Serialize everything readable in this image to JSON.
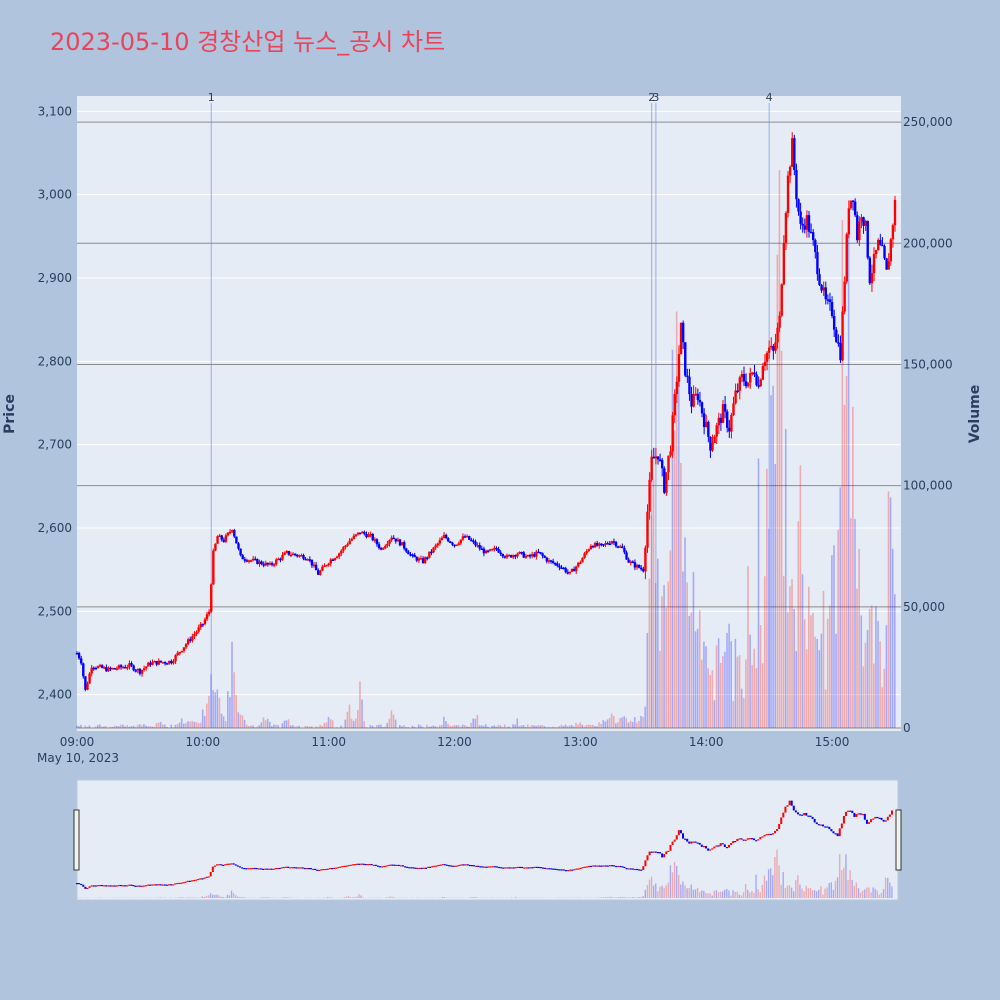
{
  "chart_data": {
    "type": "candlestick",
    "title": "2023-05-10 경창산업 뉴스_공시 차트",
    "ylabel": "Price",
    "y2label": "Volume",
    "x_date_label": "May 10, 2023",
    "xlim": [
      "09:00",
      "15:30"
    ],
    "ylim": [
      2360,
      3110
    ],
    "y2lim": [
      0,
      262000
    ],
    "x_ticks": [
      "09:00",
      "10:00",
      "11:00",
      "12:00",
      "13:00",
      "14:00",
      "15:00"
    ],
    "y_ticks": [
      "2,400",
      "2,500",
      "2,600",
      "2,700",
      "2,800",
      "2,900",
      "3,000",
      "3,100"
    ],
    "y_tick_values": [
      2400,
      2500,
      2600,
      2700,
      2800,
      2900,
      3000,
      3100
    ],
    "y2_ticks": [
      "0",
      "50,000",
      "100,000",
      "150,000",
      "200,000",
      "250,000"
    ],
    "y2_tick_values": [
      0,
      50000,
      100000,
      150000,
      200000,
      250000
    ],
    "up_color": "#ff0000",
    "down_color": "#0000ff",
    "news_markers": [
      {
        "label": "1",
        "time": "10:04"
      },
      {
        "label": "2",
        "time": "13:34"
      },
      {
        "label": "3",
        "time": "13:36"
      },
      {
        "label": "4",
        "time": "14:30"
      }
    ],
    "price_path": [
      [
        "09:00",
        2450
      ],
      [
        "09:02",
        2440
      ],
      [
        "09:04",
        2405
      ],
      [
        "09:07",
        2435
      ],
      [
        "09:15",
        2430
      ],
      [
        "09:25",
        2435
      ],
      [
        "09:30",
        2428
      ],
      [
        "09:35",
        2438
      ],
      [
        "09:45",
        2440
      ],
      [
        "09:55",
        2470
      ],
      [
        "10:00",
        2485
      ],
      [
        "10:03",
        2500
      ],
      [
        "10:05",
        2570
      ],
      [
        "10:07",
        2590
      ],
      [
        "10:10",
        2585
      ],
      [
        "10:14",
        2600
      ],
      [
        "10:18",
        2565
      ],
      [
        "10:25",
        2560
      ],
      [
        "10:32",
        2555
      ],
      [
        "10:40",
        2570
      ],
      [
        "10:50",
        2565
      ],
      [
        "10:55",
        2545
      ],
      [
        "11:00",
        2560
      ],
      [
        "11:05",
        2570
      ],
      [
        "11:10",
        2585
      ],
      [
        "11:15",
        2595
      ],
      [
        "11:20",
        2590
      ],
      [
        "11:25",
        2575
      ],
      [
        "11:30",
        2590
      ],
      [
        "11:35",
        2580
      ],
      [
        "11:40",
        2565
      ],
      [
        "11:45",
        2560
      ],
      [
        "11:50",
        2575
      ],
      [
        "11:55",
        2590
      ],
      [
        "12:00",
        2580
      ],
      [
        "12:05",
        2590
      ],
      [
        "12:10",
        2580
      ],
      [
        "12:15",
        2570
      ],
      [
        "12:20",
        2575
      ],
      [
        "12:25",
        2565
      ],
      [
        "12:30",
        2570
      ],
      [
        "12:35",
        2565
      ],
      [
        "12:40",
        2570
      ],
      [
        "12:45",
        2560
      ],
      [
        "12:50",
        2555
      ],
      [
        "12:55",
        2545
      ],
      [
        "13:00",
        2560
      ],
      [
        "13:05",
        2580
      ],
      [
        "13:10",
        2578
      ],
      [
        "13:15",
        2585
      ],
      [
        "13:20",
        2575
      ],
      [
        "13:23",
        2560
      ],
      [
        "13:26",
        2555
      ],
      [
        "13:30",
        2550
      ],
      [
        "13:32",
        2620
      ],
      [
        "13:34",
        2680
      ],
      [
        "13:37",
        2690
      ],
      [
        "13:40",
        2650
      ],
      [
        "13:43",
        2700
      ],
      [
        "13:46",
        2780
      ],
      [
        "13:48",
        2840
      ],
      [
        "13:50",
        2790
      ],
      [
        "13:53",
        2750
      ],
      [
        "13:56",
        2760
      ],
      [
        "13:59",
        2730
      ],
      [
        "14:02",
        2700
      ],
      [
        "14:05",
        2720
      ],
      [
        "14:08",
        2740
      ],
      [
        "14:11",
        2720
      ],
      [
        "14:14",
        2760
      ],
      [
        "14:17",
        2780
      ],
      [
        "14:20",
        2775
      ],
      [
        "14:23",
        2790
      ],
      [
        "14:25",
        2770
      ],
      [
        "14:27",
        2800
      ],
      [
        "14:30",
        2815
      ],
      [
        "14:32",
        2810
      ],
      [
        "14:35",
        2850
      ],
      [
        "14:37",
        2950
      ],
      [
        "14:39",
        3020
      ],
      [
        "14:41",
        3060
      ],
      [
        "14:43",
        3000
      ],
      [
        "14:45",
        2960
      ],
      [
        "14:48",
        2970
      ],
      [
        "14:51",
        2940
      ],
      [
        "14:54",
        2900
      ],
      [
        "14:57",
        2870
      ],
      [
        "15:00",
        2860
      ],
      [
        "15:02",
        2830
      ],
      [
        "15:04",
        2810
      ],
      [
        "15:06",
        2900
      ],
      [
        "15:08",
        2990
      ],
      [
        "15:10",
        3000
      ],
      [
        "15:12",
        2950
      ],
      [
        "15:14",
        2980
      ],
      [
        "15:16",
        2960
      ],
      [
        "15:18",
        2900
      ],
      [
        "15:20",
        2920
      ],
      [
        "15:22",
        2940
      ],
      [
        "15:24",
        2930
      ],
      [
        "15:26",
        2905
      ],
      [
        "15:28",
        2945
      ],
      [
        "15:30",
        2990
      ]
    ],
    "volume_spikes": [
      [
        "09:00",
        500
      ],
      [
        "09:20",
        800
      ],
      [
        "09:30",
        1000
      ],
      [
        "09:40",
        2000
      ],
      [
        "09:50",
        3000
      ],
      [
        "09:55",
        4000
      ],
      [
        "10:00",
        5000
      ],
      [
        "10:04",
        34000
      ],
      [
        "10:05",
        22000
      ],
      [
        "10:07",
        16000
      ],
      [
        "10:10",
        7000
      ],
      [
        "10:14",
        30000
      ],
      [
        "10:18",
        6000
      ],
      [
        "10:30",
        5000
      ],
      [
        "10:40",
        3000
      ],
      [
        "11:00",
        4000
      ],
      [
        "11:10",
        6000
      ],
      [
        "11:15",
        14000
      ],
      [
        "11:30",
        5000
      ],
      [
        "11:55",
        3000
      ],
      [
        "12:10",
        6000
      ],
      [
        "12:30",
        2000
      ],
      [
        "13:00",
        2000
      ],
      [
        "13:10",
        3000
      ],
      [
        "13:15",
        5000
      ],
      [
        "13:20",
        6000
      ],
      [
        "13:25",
        4000
      ],
      [
        "13:30",
        5000
      ],
      [
        "13:34",
        98000
      ],
      [
        "13:36",
        70000
      ],
      [
        "13:40",
        40000
      ],
      [
        "13:44",
        155000
      ],
      [
        "13:46",
        180000
      ],
      [
        "13:48",
        66000
      ],
      [
        "13:50",
        55000
      ],
      [
        "13:53",
        45000
      ],
      [
        "13:56",
        35000
      ],
      [
        "14:00",
        28000
      ],
      [
        "14:05",
        18000
      ],
      [
        "14:10",
        30000
      ],
      [
        "14:15",
        22000
      ],
      [
        "14:20",
        26000
      ],
      [
        "14:25",
        60000
      ],
      [
        "14:28",
        45000
      ],
      [
        "14:30",
        105000
      ],
      [
        "14:32",
        190000
      ],
      [
        "14:34",
        210000
      ],
      [
        "14:36",
        140000
      ],
      [
        "14:38",
        95000
      ],
      [
        "14:40",
        80000
      ],
      [
        "14:45",
        72000
      ],
      [
        "14:50",
        55000
      ],
      [
        "14:55",
        50000
      ],
      [
        "15:00",
        78000
      ],
      [
        "15:05",
        140000
      ],
      [
        "15:08",
        175000
      ],
      [
        "15:10",
        110000
      ],
      [
        "15:13",
        60000
      ],
      [
        "15:18",
        40000
      ],
      [
        "15:22",
        35000
      ],
      [
        "15:25",
        20000
      ],
      [
        "15:28",
        100000
      ],
      [
        "15:30",
        25000
      ]
    ]
  }
}
